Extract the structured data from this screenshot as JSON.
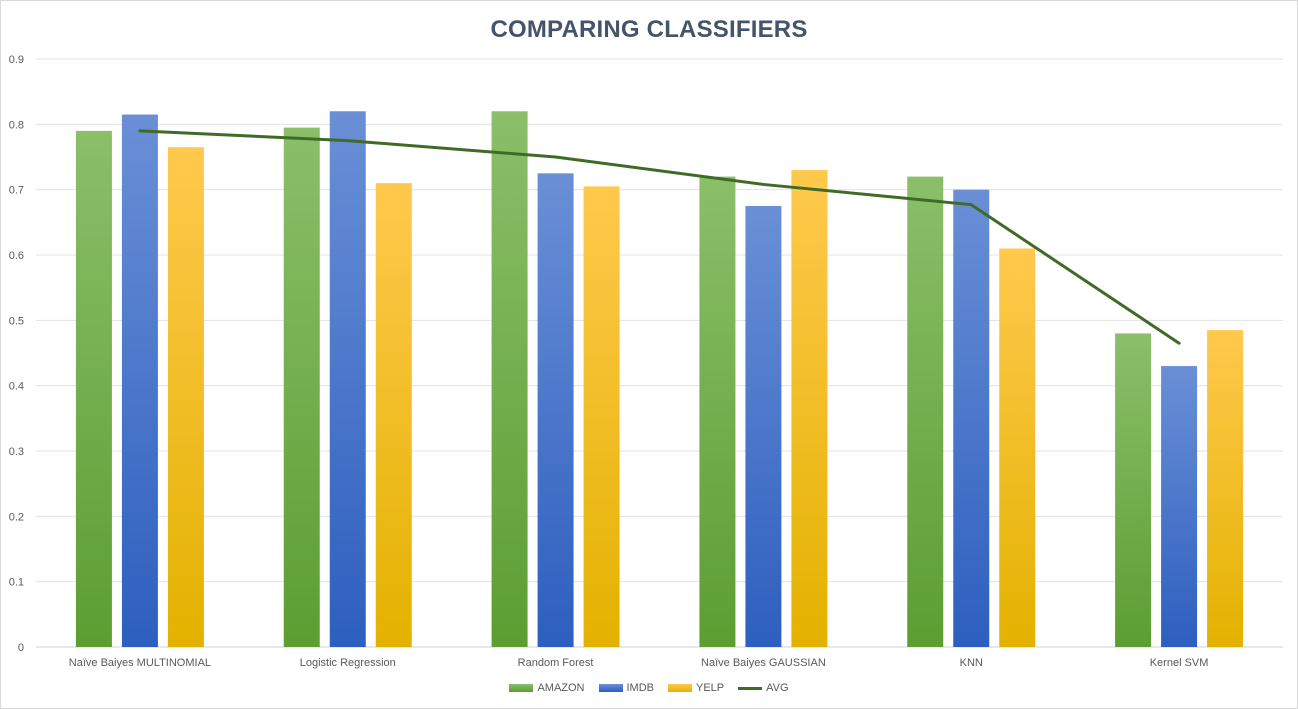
{
  "chart_data": {
    "type": "bar",
    "title": "COMPARING CLASSIFIERS",
    "xlabel": "",
    "ylabel": "",
    "ylim": [
      0,
      0.9
    ],
    "yticks": [
      "0",
      "0.1",
      "0.2",
      "0.3",
      "0.4",
      "0.5",
      "0.6",
      "0.7",
      "0.8",
      "0.9"
    ],
    "grid": true,
    "legend_position": "bottom",
    "categories": [
      "Naïve Baiyes MULTINOMIAL",
      "Logistic Regression",
      "Random Forest",
      "Naïve Baiyes GAUSSIAN",
      "KNN",
      "Kernel SVM"
    ],
    "series": [
      {
        "name": "AMAZON",
        "type": "bar",
        "color_top": "#8bbf6a",
        "color_bottom": "#5c9e32",
        "values": [
          0.79,
          0.795,
          0.82,
          0.72,
          0.72,
          0.48
        ]
      },
      {
        "name": "IMDB",
        "type": "bar",
        "color_top": "#6a8fd6",
        "color_bottom": "#2d5fbf",
        "values": [
          0.815,
          0.82,
          0.725,
          0.675,
          0.7,
          0.43
        ]
      },
      {
        "name": "YELP",
        "type": "bar",
        "color_top": "#ffc94d",
        "color_bottom": "#e3b200",
        "values": [
          0.765,
          0.71,
          0.705,
          0.73,
          0.61,
          0.485
        ]
      },
      {
        "name": "AVG",
        "type": "line",
        "color": "#3f6b27",
        "values": [
          0.79,
          0.775,
          0.75,
          0.708,
          0.677,
          0.465
        ]
      }
    ]
  }
}
